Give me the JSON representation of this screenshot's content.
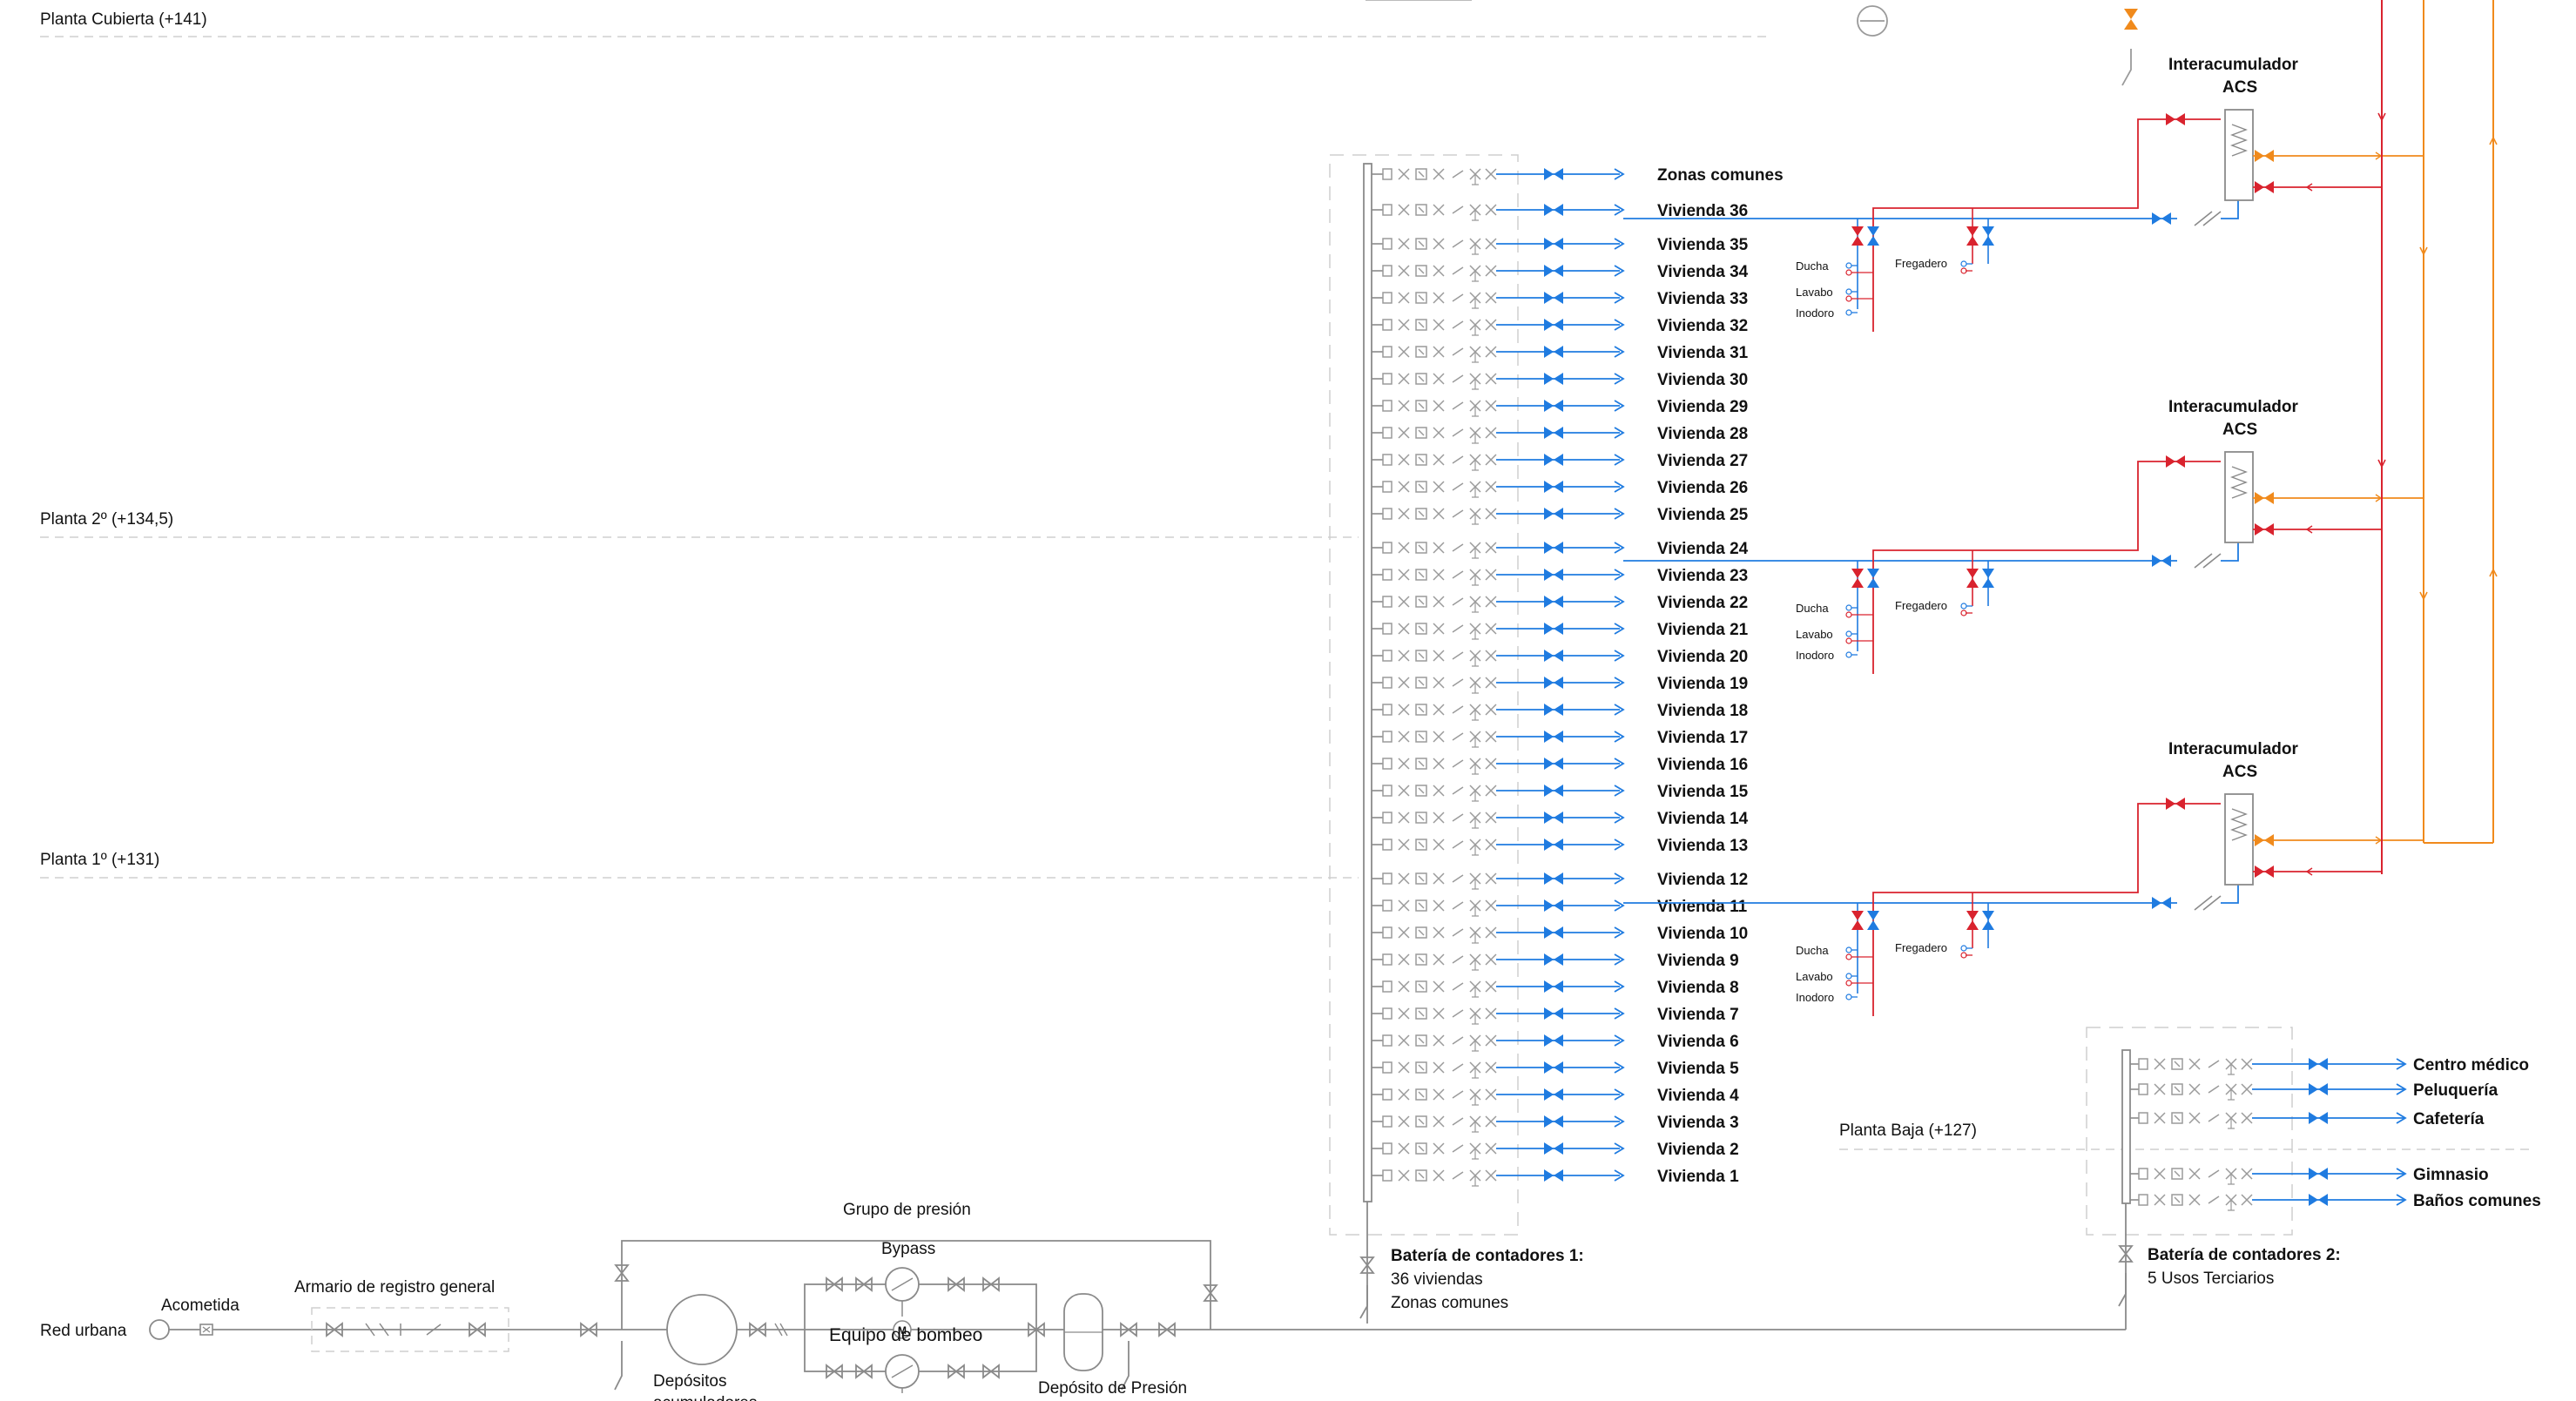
{
  "colors": {
    "cold": "#1f7be0",
    "hot": "#d9232e",
    "recirc": "#f08a1c",
    "pipe": "#8a8a8a",
    "dash": "#c8c8c8"
  },
  "floors": {
    "cubierta": "Planta Cubierta (+141)",
    "segunda": "Planta 2º (+134,5)",
    "primera": "Planta 1º (+131)",
    "baja": "Planta Baja (+127)"
  },
  "battery1": {
    "zonas": "Zonas comunes",
    "viviendas": [
      "Vivienda 36",
      "Vivienda 35",
      "Vivienda 34",
      "Vivienda 33",
      "Vivienda 32",
      "Vivienda 31",
      "Vivienda 30",
      "Vivienda 29",
      "Vivienda 28",
      "Vivienda 27",
      "Vivienda 26",
      "Vivienda 25",
      "Vivienda 24",
      "Vivienda 23",
      "Vivienda 22",
      "Vivienda 21",
      "Vivienda 20",
      "Vivienda 19",
      "Vivienda 18",
      "Vivienda 17",
      "Vivienda 16",
      "Vivienda 15",
      "Vivienda 14",
      "Vivienda 13",
      "Vivienda 12",
      "Vivienda 11",
      "Vivienda 10",
      "Vivienda 9",
      "Vivienda 8",
      "Vivienda 7",
      "Vivienda 6",
      "Vivienda 5",
      "Vivienda 4",
      "Vivienda 3",
      "Vivienda 2",
      "Vivienda 1"
    ],
    "caption_title": "Batería de contadores 1:",
    "caption_line1": "36 viviendas",
    "caption_line2": "Zonas comunes"
  },
  "battery2": {
    "uses": [
      "Centro médico",
      "Peluquería",
      "Cafetería",
      "Gimnasio",
      "Baños comunes"
    ],
    "caption_title": "Batería de contadores 2:",
    "caption_line1": "5 Usos Terciarios"
  },
  "dwelling": {
    "ducha": "Ducha",
    "lavabo": "Lavabo",
    "inodoro": "Inodoro",
    "fregadero": "Fregadero"
  },
  "acs": {
    "line1": "Interacumulador",
    "line2": "ACS"
  },
  "entry": {
    "red_urbana": "Red urbana",
    "acometida": "Acometida",
    "armario": "Armario de registro general",
    "grupo": "Grupo de presión",
    "bypass": "Bypass",
    "equipo": "Equipo de bombeo",
    "motor": "M",
    "depositos_1": "Depósitos",
    "depositos_2": "acumuladores",
    "deposito_presion": "Depósito de Presión"
  }
}
